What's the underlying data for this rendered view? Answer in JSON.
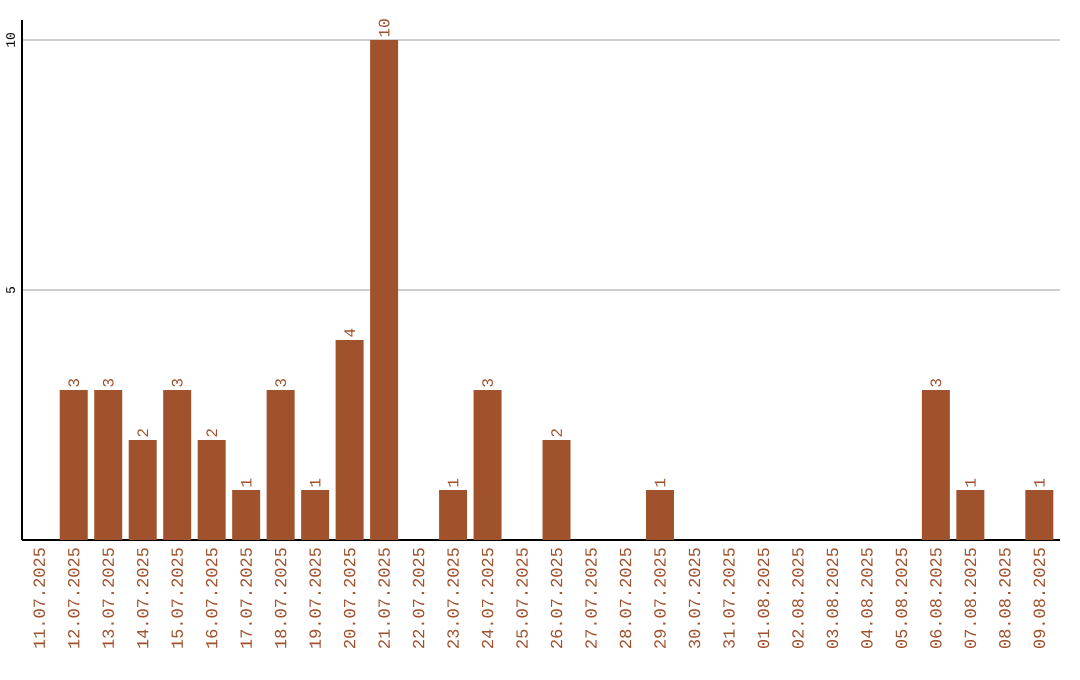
{
  "chart_data": {
    "type": "bar",
    "categories": [
      "11.07.2025",
      "12.07.2025",
      "13.07.2025",
      "14.07.2025",
      "15.07.2025",
      "16.07.2025",
      "17.07.2025",
      "18.07.2025",
      "19.07.2025",
      "20.07.2025",
      "21.07.2025",
      "22.07.2025",
      "23.07.2025",
      "24.07.2025",
      "25.07.2025",
      "26.07.2025",
      "27.07.2025",
      "28.07.2025",
      "29.07.2025",
      "30.07.2025",
      "31.07.2025",
      "01.08.2025",
      "02.08.2025",
      "03.08.2025",
      "04.08.2025",
      "05.08.2025",
      "06.08.2025",
      "07.08.2025",
      "08.08.2025",
      "09.08.2025"
    ],
    "values": [
      0,
      3,
      3,
      2,
      3,
      2,
      1,
      3,
      1,
      4,
      10,
      0,
      1,
      3,
      0,
      2,
      0,
      0,
      1,
      0,
      0,
      0,
      0,
      0,
      0,
      0,
      3,
      1,
      0,
      1
    ],
    "value_labels": [
      null,
      "3",
      "3",
      "2",
      "3",
      "2",
      "1",
      "3",
      "1",
      "4",
      "10",
      null,
      "1",
      "3",
      null,
      "2",
      null,
      null,
      "1",
      null,
      null,
      null,
      null,
      null,
      null,
      null,
      "3",
      "1",
      null,
      "1"
    ],
    "color": "#a0522d",
    "ylim": [
      0,
      10.4
    ],
    "yticks": [
      5,
      10
    ],
    "grid": "y"
  }
}
